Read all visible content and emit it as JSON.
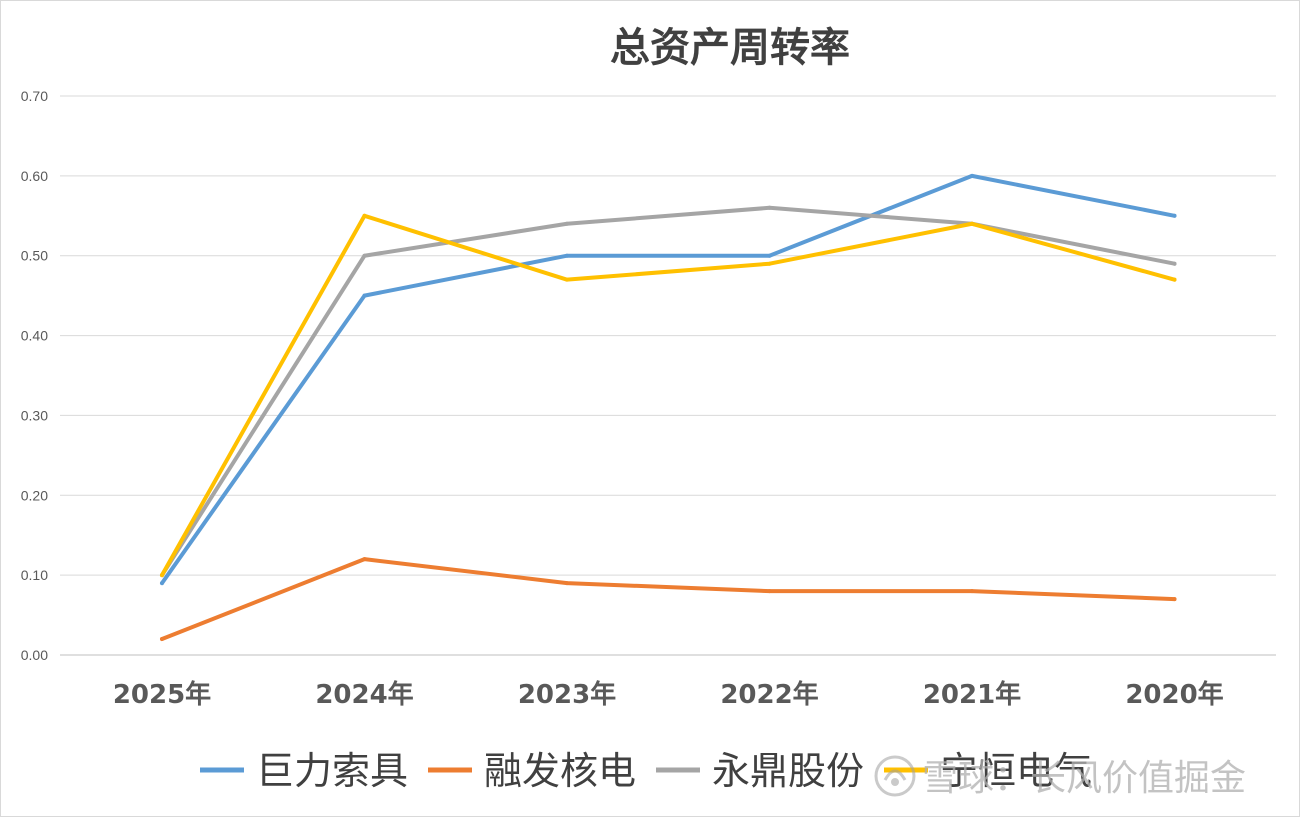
{
  "chart_data": {
    "type": "line",
    "title": "总资产周转率",
    "categories": [
      "2025年",
      "2024年",
      "2023年",
      "2022年",
      "2021年",
      "2020年"
    ],
    "ylim": [
      0,
      0.7
    ],
    "yticks": [
      "0.00",
      "0.10",
      "0.20",
      "0.30",
      "0.40",
      "0.50",
      "0.60",
      "0.70"
    ],
    "grid": true,
    "legend_position": "bottom",
    "series": [
      {
        "name": "巨力索具",
        "color": "#5b9bd5",
        "values": [
          0.09,
          0.45,
          0.5,
          0.5,
          0.6,
          0.55
        ]
      },
      {
        "name": "融发核电",
        "color": "#ed7d31",
        "values": [
          0.02,
          0.12,
          0.09,
          0.08,
          0.08,
          0.07
        ]
      },
      {
        "name": "永鼎股份",
        "color": "#a5a5a5",
        "values": [
          0.1,
          0.5,
          0.54,
          0.56,
          0.54,
          0.49
        ]
      },
      {
        "name": "宁恒电气",
        "color": "#ffc000",
        "values": [
          0.1,
          0.55,
          0.47,
          0.49,
          0.54,
          0.47
        ]
      }
    ]
  },
  "watermark": {
    "logo_icon": "snowball-logo-icon",
    "text": "雪球：长风价值掘金"
  }
}
